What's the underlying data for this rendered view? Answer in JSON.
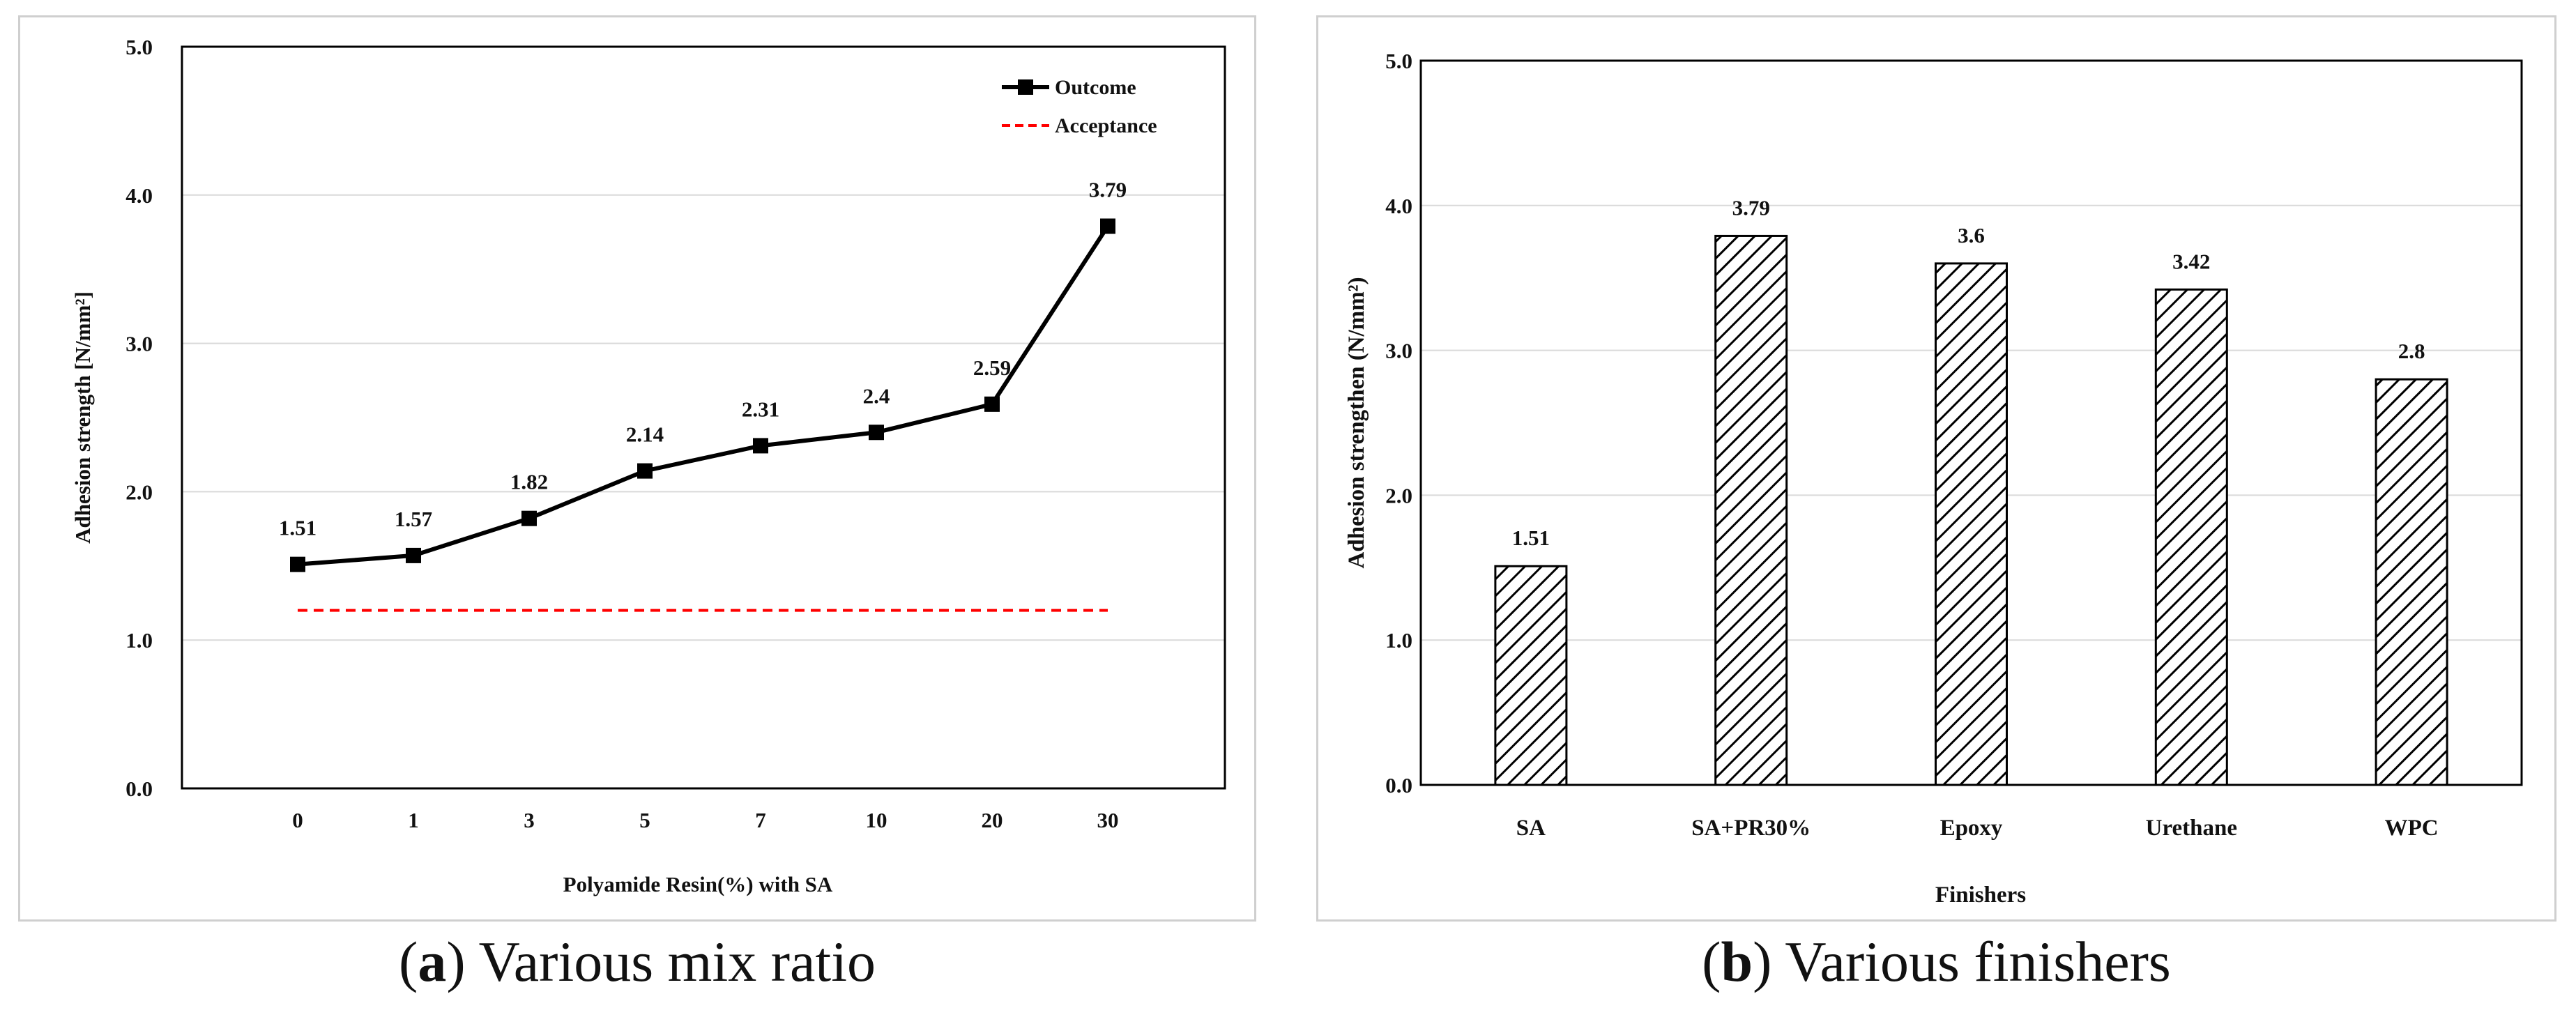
{
  "chart_data": [
    {
      "id": "a",
      "type": "line",
      "categories": [
        "0",
        "1",
        "3",
        "5",
        "7",
        "10",
        "20",
        "30"
      ],
      "series": [
        {
          "name": "Outcome",
          "values": [
            1.51,
            1.57,
            1.82,
            2.14,
            2.31,
            2.4,
            2.59,
            3.79
          ],
          "color": "#000000"
        },
        {
          "name": "Acceptance",
          "values": [
            1.2,
            1.2,
            1.2,
            1.2,
            1.2,
            1.2,
            1.2,
            1.2
          ],
          "color": "#ff0000",
          "dashed": true
        }
      ],
      "data_labels": [
        "1.51",
        "1.57",
        "1.82",
        "2.14",
        "2.31",
        "2.4",
        "2.59",
        "3.79"
      ],
      "xlabel": "Polyamide Resin(%) with SA",
      "ylabel": "Adhesion strength [N/mm²]",
      "ylim": [
        0,
        5
      ],
      "yticks": [
        "0.0",
        "1.0",
        "2.0",
        "3.0",
        "4.0",
        "5.0"
      ],
      "legend": [
        "Outcome",
        "Acceptance"
      ],
      "legend_position": "top-right",
      "grid": true
    },
    {
      "id": "b",
      "type": "bar",
      "categories": [
        "SA",
        "SA+PR30%",
        "Epoxy",
        "Urethane",
        "WPC"
      ],
      "values": [
        1.51,
        3.79,
        3.6,
        3.42,
        2.8
      ],
      "data_labels": [
        "1.51",
        "3.79",
        "3.6",
        "3.42",
        "2.8"
      ],
      "xlabel": "Finishers",
      "ylabel": "Adhesion strengthen (N/mm²)",
      "ylim": [
        0,
        5
      ],
      "yticks": [
        "0.0",
        "1.0",
        "2.0",
        "3.0",
        "4.0",
        "5.0"
      ],
      "bar_pattern": "diagonal-hatch",
      "grid": true
    }
  ],
  "captions": {
    "a": {
      "letter": "a",
      "text": " Various mix ratio"
    },
    "b": {
      "letter": "b",
      "text": " Various finishers"
    }
  }
}
